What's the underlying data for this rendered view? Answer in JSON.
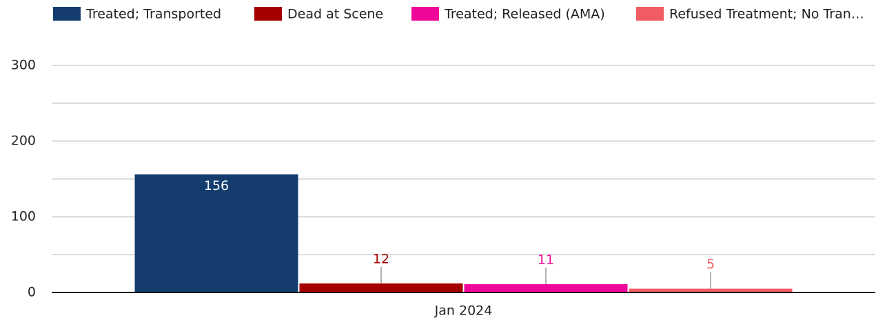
{
  "chart_data": {
    "type": "bar",
    "categories": [
      "Jan 2024"
    ],
    "series": [
      {
        "name": "Treated; Transported",
        "color": "#143d6e",
        "values": [
          156
        ]
      },
      {
        "name": "Dead at Scene",
        "color": "#a50000",
        "values": [
          12
        ]
      },
      {
        "name": "Treated; Released (AMA)",
        "color": "#f0079a",
        "values": [
          11
        ]
      },
      {
        "name": "Refused Treatment; No Tran…",
        "color": "#f05c62",
        "values": [
          5
        ]
      }
    ],
    "ylim": [
      0,
      300
    ],
    "yticks": [
      0,
      100,
      200,
      300
    ],
    "minor_grid": [
      50,
      150,
      250
    ],
    "grid": true,
    "legend": "top"
  }
}
